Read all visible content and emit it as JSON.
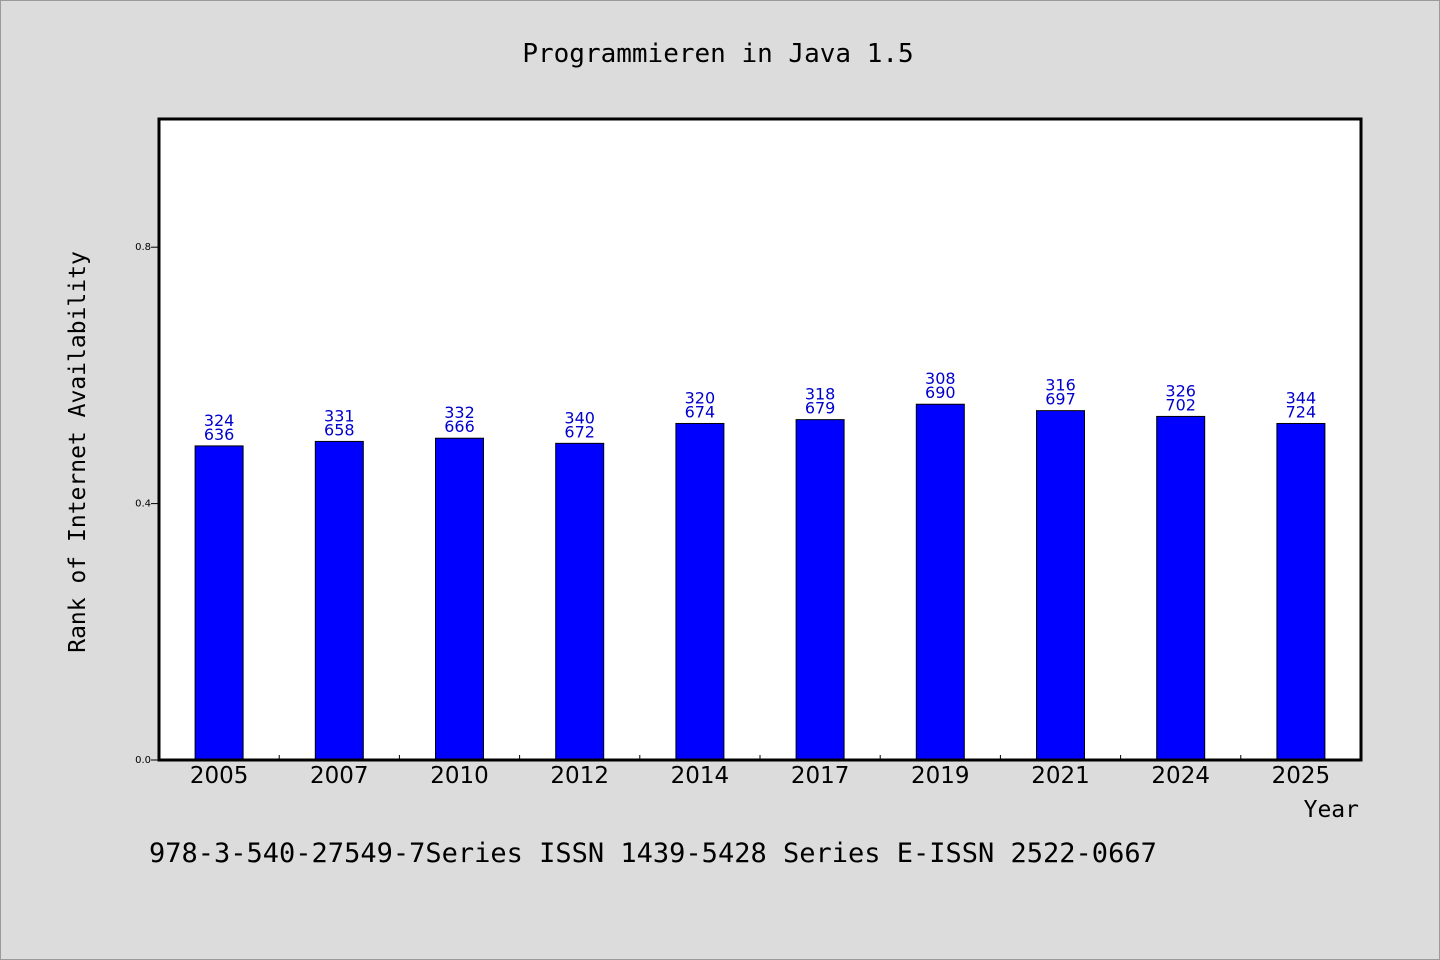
{
  "chart_data": {
    "type": "bar",
    "title": "Programmieren in Java 1.5",
    "xlabel": "Year",
    "ylabel": "Rank of Internet Availability",
    "ylim": [
      0,
      1.0
    ],
    "yticks": [
      "0.0",
      "0.4",
      "0.8"
    ],
    "grid": false,
    "categories": [
      "2005",
      "2007",
      "2010",
      "2012",
      "2014",
      "2017",
      "2019",
      "2021",
      "2024",
      "2025"
    ],
    "values": [
      0.49,
      0.497,
      0.502,
      0.494,
      0.525,
      0.531,
      0.555,
      0.545,
      0.536,
      0.525
    ],
    "bar_labels_top": [
      "324",
      "331",
      "332",
      "340",
      "320",
      "318",
      "308",
      "316",
      "326",
      "344"
    ],
    "bar_labels_bottom": [
      "636",
      "658",
      "666",
      "672",
      "674",
      "679",
      "690",
      "697",
      "702",
      "724"
    ],
    "bar_color": "#0000ff",
    "label_color": "#0000cc",
    "footer": "978-3-540-27549-7Series ISSN 1439-5428 Series E-ISSN 2522-0667"
  }
}
